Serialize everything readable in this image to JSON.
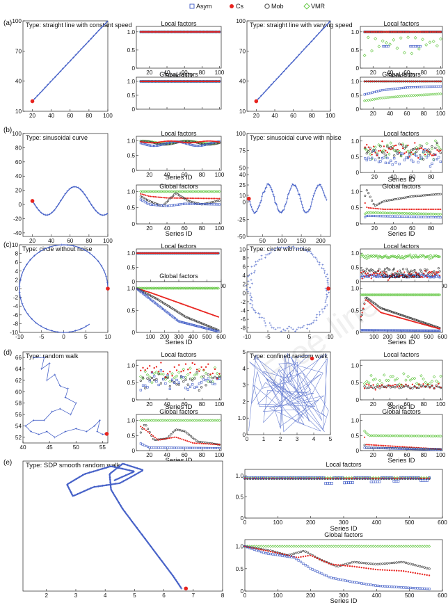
{
  "legend": {
    "items": [
      {
        "label": "Asym",
        "color": "#3a57c4",
        "marker": "square"
      },
      {
        "label": "Cs",
        "color": "#e8231e",
        "marker": "dot"
      },
      {
        "label": "Mob",
        "color": "#333333",
        "marker": "circle"
      },
      {
        "label": "VMR",
        "color": "#5cc43a",
        "marker": "diamond"
      }
    ]
  },
  "rows": [
    {
      "label": "(a)"
    },
    {
      "label": "(b)"
    },
    {
      "label": "(c)"
    },
    {
      "label": "(d)"
    },
    {
      "label": "(e)"
    }
  ],
  "watermark": "Free-line",
  "chart_data": [
    {
      "id": "a1",
      "type": "line",
      "title": "Type: straight line with constant speed",
      "x": [
        20,
        100
      ],
      "y": [
        20,
        100
      ],
      "xlim": [
        10,
        100
      ],
      "ylim": [
        10,
        100
      ],
      "xticks": [
        20,
        40,
        60,
        80,
        100
      ],
      "yticks": [
        10,
        40,
        70,
        100
      ],
      "start_point": [
        20,
        20
      ]
    },
    {
      "id": "a1L",
      "type": "scatter",
      "title": "Local factors",
      "xlabel": "Series ID",
      "xlim": [
        5,
        102
      ],
      "ylim": [
        0,
        1.15
      ],
      "xticks": [
        20,
        40,
        60,
        80,
        100
      ],
      "yticks": [
        0,
        0.5,
        1.0
      ],
      "series": [
        {
          "name": "Asym",
          "values": [
            1.0
          ]
        },
        {
          "name": "Cs",
          "values": [
            1.0
          ]
        },
        {
          "name": "Mob",
          "values": [
            1.0
          ]
        },
        {
          "name": "VMR",
          "values": [
            1.0
          ]
        }
      ]
    },
    {
      "id": "a1G",
      "type": "scatter",
      "title": "Global factors",
      "xlim": [
        5,
        102
      ],
      "ylim": [
        0,
        1.15
      ],
      "xticks": [
        20,
        40,
        60,
        80,
        100
      ],
      "yticks": [
        0,
        0.5,
        1.0
      ],
      "series": [
        {
          "name": "Asym",
          "values": [
            1.0
          ]
        },
        {
          "name": "Cs",
          "values": [
            1.0
          ]
        },
        {
          "name": "Mob",
          "values": [
            1.0
          ]
        },
        {
          "name": "VMR",
          "values": [
            1.0
          ]
        }
      ]
    },
    {
      "id": "a2",
      "type": "line",
      "title": "Type: straight line with varying speed",
      "x": [
        20,
        100
      ],
      "y": [
        20,
        100
      ],
      "xlim": [
        10,
        100
      ],
      "ylim": [
        10,
        100
      ],
      "xticks": [
        20,
        40,
        60,
        80,
        100
      ],
      "yticks": [
        10,
        40,
        70,
        100
      ],
      "start_point": [
        20,
        20
      ]
    },
    {
      "id": "a2L",
      "type": "scatter",
      "title": "Local factors",
      "xlabel": "Series ID",
      "xlim": [
        5,
        102
      ],
      "ylim": [
        0,
        1.15
      ],
      "xticks": [
        20,
        40,
        60,
        80,
        100
      ],
      "yticks": [
        0,
        0.5,
        1.0
      ],
      "series": [
        {
          "name": "Asym",
          "values": [
            1.0,
            0.6,
            0.6,
            0.6
          ]
        },
        {
          "name": "Cs",
          "values": [
            1.0
          ]
        },
        {
          "name": "Mob",
          "values": [
            1.0
          ]
        },
        {
          "name": "VMR",
          "values": [
            0.8,
            0.4,
            0.7,
            0.3,
            0.6
          ]
        }
      ]
    },
    {
      "id": "a2G",
      "type": "scatter",
      "title": "Global factors",
      "xlim": [
        5,
        102
      ],
      "ylim": [
        0,
        1.15
      ],
      "xticks": [
        20,
        40,
        60,
        80,
        100
      ],
      "yticks": [
        0,
        0.5,
        1.0
      ],
      "series": [
        {
          "name": "Asym",
          "values": [
            0.5,
            0.7,
            0.8
          ]
        },
        {
          "name": "Cs",
          "values": [
            1.0
          ]
        },
        {
          "name": "Mob",
          "values": [
            1.0
          ]
        },
        {
          "name": "VMR",
          "values": [
            0.3,
            0.45,
            0.5
          ]
        }
      ]
    },
    {
      "id": "b1",
      "type": "line",
      "title": "Type: sinusoidal curve",
      "xlim": [
        10,
        100
      ],
      "ylim": [
        -45,
        100
      ],
      "xticks": [
        20,
        40,
        60,
        80,
        100
      ],
      "yticks": [
        -40,
        -20,
        0,
        20,
        40,
        60,
        80,
        100
      ],
      "start_point": [
        20,
        5
      ]
    },
    {
      "id": "b1L",
      "type": "scatter",
      "title": "Local factors",
      "xlabel": "Series ID",
      "xlim": [
        5,
        102
      ],
      "ylim": [
        0,
        1.15
      ],
      "xticks": [
        20,
        40,
        60,
        80,
        100
      ],
      "yticks": [
        0,
        0.5,
        1.0
      ]
    },
    {
      "id": "b1G",
      "type": "line",
      "title": "Global factors",
      "xlabel": "Series ID",
      "xlim": [
        5,
        102
      ],
      "ylim": [
        0,
        1.2
      ],
      "xticks": [
        20,
        40,
        60,
        80,
        100
      ],
      "yticks": [
        0,
        0.5,
        1.0
      ],
      "series": [
        {
          "name": "Asym",
          "values": [
            0.9,
            0.55,
            0.6
          ]
        },
        {
          "name": "Cs",
          "values": [
            1.0,
            0.8,
            0.75
          ]
        },
        {
          "name": "Mob",
          "values": [
            1.0,
            0.5,
            0.7
          ]
        },
        {
          "name": "VMR",
          "values": [
            1.0
          ]
        }
      ]
    },
    {
      "id": "b2",
      "type": "line",
      "title": "Type: sinusoidal curve with noise",
      "xlim": [
        10,
        225
      ],
      "ylim": [
        -50,
        100
      ],
      "xticks": [
        50,
        100,
        150,
        200
      ],
      "yticks": [
        -50,
        -25,
        0,
        10,
        25,
        40,
        50,
        75,
        100
      ],
      "start_point": [
        15,
        5
      ]
    },
    {
      "id": "b2L",
      "type": "scatter",
      "title": "Local factors",
      "xlabel": "Series ID",
      "xlim": [
        5,
        92
      ],
      "ylim": [
        0,
        1.15
      ],
      "xticks": [
        20,
        40,
        60,
        80
      ],
      "yticks": [
        0,
        0.5,
        1.0
      ]
    },
    {
      "id": "b2G",
      "type": "line",
      "title": "Global factors",
      "xlabel": "Series ID",
      "xlim": [
        5,
        92
      ],
      "ylim": [
        0,
        1.2
      ],
      "xticks": [
        20,
        40,
        60,
        80
      ],
      "yticks": [
        0,
        0.5,
        1.0
      ],
      "series": [
        {
          "name": "Asym",
          "values": [
            0.25,
            0.2
          ]
        },
        {
          "name": "Cs",
          "values": [
            0.4,
            0.45
          ]
        },
        {
          "name": "Mob",
          "values": [
            1.0,
            0.9
          ]
        },
        {
          "name": "VMR",
          "values": [
            0.35,
            0.3
          ]
        }
      ]
    },
    {
      "id": "c1",
      "type": "line",
      "title": "Type: circle without noise",
      "xlim": [
        -10,
        10
      ],
      "ylim": [
        -10,
        10
      ],
      "xticks": [
        -10,
        -5,
        0,
        5,
        10
      ],
      "yticks": [
        -10,
        -8,
        -6,
        -4,
        -2,
        0,
        2,
        4,
        6,
        8,
        10
      ],
      "start_point": [
        10,
        0
      ]
    },
    {
      "id": "c1L",
      "type": "scatter",
      "title": "Local factors",
      "xlabel": "Series ID",
      "xlim": [
        0,
        600
      ],
      "ylim": [
        0,
        1.15
      ],
      "xticks": [
        100,
        200,
        300,
        400,
        500,
        600
      ],
      "yticks": [
        0,
        0.5,
        1.0
      ]
    },
    {
      "id": "c1G",
      "type": "line",
      "title": "Global factors",
      "xlabel": "Series ID",
      "xlim": [
        0,
        600
      ],
      "ylim": [
        0,
        1.15
      ],
      "xticks": [
        100,
        200,
        300,
        400,
        500,
        600
      ],
      "yticks": [
        0,
        0.5,
        1.0
      ],
      "series": [
        {
          "name": "Asym",
          "values": [
            1.0,
            0.05
          ]
        },
        {
          "name": "Cs",
          "values": [
            1.0,
            0.35
          ]
        },
        {
          "name": "Mob",
          "values": [
            1.0,
            0.05
          ]
        },
        {
          "name": "VMR",
          "values": [
            1.0
          ]
        }
      ]
    },
    {
      "id": "c2",
      "type": "scatter",
      "title": "Type: circle with noise",
      "xlim": [
        -10,
        10
      ],
      "ylim": [
        -9,
        11
      ],
      "xticks": [
        -10,
        -5,
        0,
        5,
        10
      ],
      "yticks": [
        -8,
        -6,
        -4,
        -2,
        0,
        2,
        4,
        6,
        8,
        10
      ],
      "start_point": [
        10,
        0
      ]
    },
    {
      "id": "c2L",
      "type": "scatter",
      "title": "Local factors",
      "xlabel": "Series ID",
      "xlim": [
        0,
        600
      ],
      "ylim": [
        0,
        1.15
      ],
      "xticks": [
        100,
        200,
        300,
        400,
        500,
        600
      ],
      "yticks": [
        0,
        0.5,
        1.0
      ]
    },
    {
      "id": "c2G",
      "type": "line",
      "title": "Global factors",
      "xlabel": "Series ID",
      "xlim": [
        0,
        600
      ],
      "ylim": [
        0,
        1.15
      ],
      "xticks": [
        100,
        200,
        300,
        400,
        500,
        600
      ],
      "yticks": [
        0,
        0.5,
        1.0
      ],
      "series": [
        {
          "name": "Asym",
          "values": [
            0.1,
            0.05
          ]
        },
        {
          "name": "Cs",
          "values": [
            0.8,
            0.1
          ]
        },
        {
          "name": "Mob",
          "values": [
            0.8,
            0.1
          ]
        },
        {
          "name": "VMR",
          "values": [
            0.9
          ]
        }
      ]
    },
    {
      "id": "d1",
      "type": "line",
      "title": "Type: random walk",
      "xlim": [
        40,
        56
      ],
      "ylim": [
        51,
        67
      ],
      "xticks": [
        40,
        45,
        50,
        55
      ],
      "yticks": [
        52,
        54,
        56,
        58,
        60,
        62,
        64,
        66
      ]
    },
    {
      "id": "d1L",
      "type": "scatter",
      "title": "Local factors",
      "xlabel": "Series ID",
      "xlim": [
        5,
        102
      ],
      "ylim": [
        0,
        1.15
      ],
      "xticks": [
        20,
        40,
        60,
        80,
        100
      ],
      "yticks": [
        0,
        0.5,
        1.0
      ]
    },
    {
      "id": "d1G",
      "type": "line",
      "title": "Global factors",
      "xlabel": "Series ID",
      "xlim": [
        5,
        102
      ],
      "ylim": [
        0,
        1.2
      ],
      "xticks": [
        20,
        40,
        60,
        80,
        100
      ],
      "yticks": [
        0,
        0.5,
        1.0
      ],
      "series": [
        {
          "name": "Asym",
          "values": [
            0.2,
            0.1
          ]
        },
        {
          "name": "Cs",
          "values": [
            0.6,
            0.2
          ]
        },
        {
          "name": "Mob",
          "values": [
            0.3,
            0.2
          ]
        },
        {
          "name": "VMR",
          "values": [
            1.0
          ]
        }
      ]
    },
    {
      "id": "d2",
      "type": "line",
      "title": "Type: confined random walk",
      "xlim": [
        0,
        5
      ],
      "ylim": [
        0,
        5
      ],
      "xticks": [
        0,
        1,
        2,
        3,
        4,
        5
      ],
      "yticks": [
        0,
        1,
        2,
        3,
        4,
        5
      ]
    },
    {
      "id": "d2L",
      "type": "scatter",
      "title": "Local factors",
      "xlabel": "Series ID",
      "xlim": [
        5,
        102
      ],
      "ylim": [
        0,
        1.15
      ],
      "xticks": [
        20,
        40,
        60,
        80,
        100
      ],
      "yticks": [
        0,
        0.5,
        1.0
      ]
    },
    {
      "id": "d2G",
      "type": "line",
      "title": "Global factors",
      "xlabel": "Series ID",
      "xlim": [
        5,
        102
      ],
      "ylim": [
        0,
        1.2
      ],
      "xticks": [
        20,
        40,
        60,
        80,
        100
      ],
      "yticks": [
        0,
        0.5,
        1.0
      ],
      "series": [
        {
          "name": "Asym",
          "values": [
            0.05
          ]
        },
        {
          "name": "Cs",
          "values": [
            0.1
          ]
        },
        {
          "name": "Mob",
          "values": [
            0.05
          ]
        },
        {
          "name": "VMR",
          "values": [
            0.5
          ]
        }
      ]
    },
    {
      "id": "e1",
      "type": "line",
      "title": "Type: SDP smooth random walk",
      "xlim": [
        1.2,
        8
      ],
      "xticks": [
        2,
        3,
        4,
        5,
        6,
        7,
        8
      ]
    },
    {
      "id": "e1L",
      "type": "scatter",
      "title": "Local factors",
      "xlabel": "Series ID",
      "xlim": [
        0,
        600
      ],
      "ylim": [
        0,
        1.15
      ],
      "xticks": [
        0,
        100,
        200,
        300,
        400,
        500,
        600
      ],
      "yticks": [
        0,
        0.5,
        1.0
      ]
    },
    {
      "id": "e1G",
      "type": "line",
      "title": "Global factors",
      "xlabel": "Series ID",
      "xlim": [
        0,
        600
      ],
      "ylim": [
        0,
        1.15
      ],
      "xticks": [
        0,
        100,
        200,
        300,
        400,
        500,
        600
      ],
      "yticks": [
        0,
        0.5,
        1.0
      ],
      "series": [
        {
          "name": "Asym",
          "values": [
            1.0,
            0.05
          ]
        },
        {
          "name": "Cs",
          "values": [
            1.0,
            0.35
          ]
        },
        {
          "name": "Mob",
          "values": [
            1.0,
            0.5
          ]
        },
        {
          "name": "VMR",
          "values": [
            1.0
          ]
        }
      ]
    }
  ]
}
